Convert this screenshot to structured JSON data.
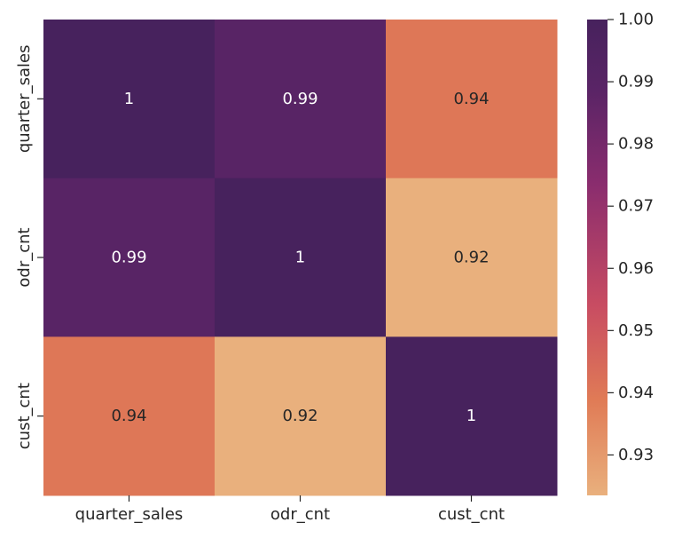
{
  "chart_data": {
    "type": "heatmap",
    "rows": [
      "quarter_sales",
      "odr_cnt",
      "cust_cnt"
    ],
    "columns": [
      "quarter_sales",
      "odr_cnt",
      "cust_cnt"
    ],
    "values": [
      [
        1.0,
        0.99,
        0.94
      ],
      [
        0.99,
        1.0,
        0.92
      ],
      [
        0.94,
        0.92,
        1.0
      ]
    ],
    "annotations": [
      [
        "1",
        "0.99",
        "0.94"
      ],
      [
        "0.99",
        "1",
        "0.92"
      ],
      [
        "0.94",
        "0.92",
        "1"
      ]
    ],
    "colorbar": {
      "min": 0.9235,
      "max": 1.0,
      "ticks": [
        "1.00",
        "0.99",
        "0.98",
        "0.97",
        "0.96",
        "0.95",
        "0.94",
        "0.93"
      ],
      "tick_values": [
        1.0,
        0.99,
        0.98,
        0.97,
        0.96,
        0.95,
        0.94,
        0.93
      ]
    },
    "colormap": [
      "#e9b07d",
      "#e07b56",
      "#c84c62",
      "#8b2d6e",
      "#5a2466",
      "#47225d"
    ],
    "title": "",
    "xlabel": "",
    "ylabel": ""
  }
}
